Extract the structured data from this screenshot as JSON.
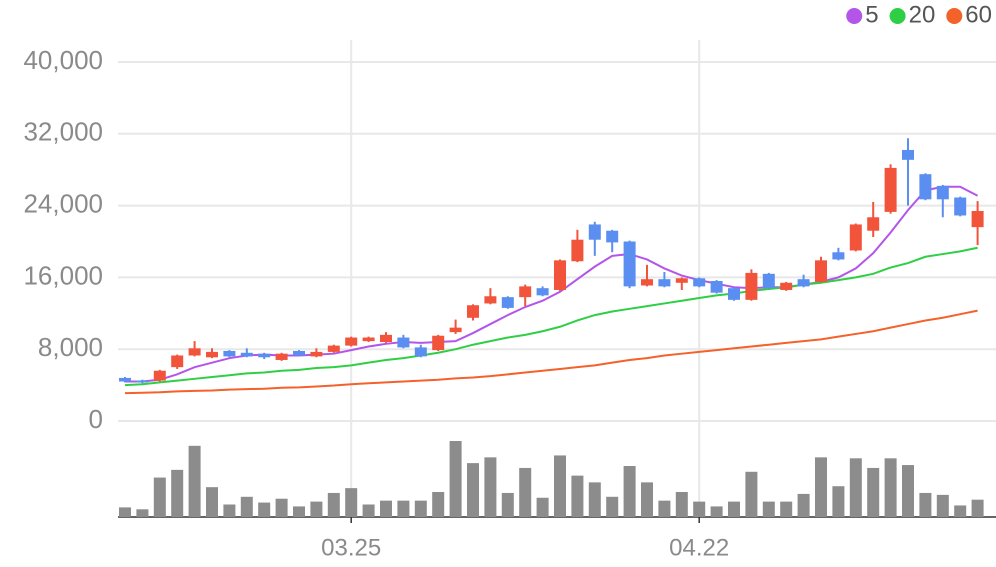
{
  "chart_data": {
    "type": "candlestick",
    "categories": [
      null,
      null,
      null,
      null,
      null,
      null,
      null,
      null,
      null,
      null,
      null,
      null,
      null,
      "03.25",
      null,
      null,
      null,
      null,
      null,
      null,
      null,
      null,
      null,
      null,
      null,
      null,
      null,
      null,
      null,
      null,
      null,
      null,
      null,
      "04.22",
      null,
      null,
      null,
      null,
      null,
      null,
      null,
      null,
      null,
      null,
      null,
      null,
      null,
      null,
      null,
      null
    ],
    "open": [
      4800,
      4500,
      4500,
      6000,
      7300,
      7100,
      7800,
      7600,
      7500,
      6800,
      7800,
      7200,
      7700,
      8400,
      8900,
      8800,
      9300,
      8200,
      7900,
      9900,
      11500,
      13100,
      13800,
      13800,
      14800,
      14600,
      17800,
      21900,
      21200,
      20000,
      15100,
      15800,
      15400,
      15900,
      15600,
      14800,
      13500,
      16400,
      14600,
      15800,
      15500,
      18800,
      19000,
      21200,
      23300,
      30200,
      27500,
      26200,
      24900,
      21600
    ],
    "high": [
      4900,
      4600,
      5700,
      7400,
      8900,
      8100,
      7900,
      8100,
      7600,
      7600,
      7900,
      8100,
      8500,
      9400,
      9400,
      9900,
      9600,
      8500,
      9600,
      11300,
      13000,
      14800,
      13900,
      15200,
      15000,
      18000,
      21300,
      22200,
      21300,
      20100,
      17400,
      16600,
      16000,
      16000,
      15700,
      14900,
      16900,
      16500,
      15500,
      16300,
      18300,
      19300,
      22000,
      24400,
      28600,
      31500,
      27600,
      26300,
      25000,
      24500
    ],
    "low": [
      4300,
      4200,
      4400,
      5800,
      7200,
      7000,
      7100,
      7100,
      6900,
      6700,
      7200,
      7100,
      7600,
      8300,
      8800,
      8700,
      8100,
      7100,
      7800,
      9700,
      11200,
      13000,
      12500,
      12800,
      13900,
      14500,
      17700,
      18400,
      18800,
      14800,
      15000,
      14900,
      14600,
      14900,
      14200,
      13400,
      13400,
      14700,
      14500,
      14900,
      15400,
      17900,
      18900,
      20500,
      23100,
      24000,
      24600,
      22700,
      22800,
      19600
    ],
    "close": [
      4400,
      4300,
      5600,
      7300,
      8100,
      7700,
      7200,
      7200,
      7100,
      7500,
      7300,
      7700,
      8400,
      9300,
      9300,
      9600,
      8200,
      7200,
      9500,
      10400,
      12900,
      13900,
      12600,
      15000,
      14000,
      17900,
      20200,
      20200,
      19900,
      15000,
      15800,
      15000,
      15900,
      15000,
      14300,
      13500,
      16500,
      14800,
      15400,
      15000,
      17900,
      18000,
      21900,
      22700,
      28200,
      29100,
      24700,
      24700,
      22900,
      23400
    ],
    "up_color": "#f1533b",
    "down_color": "#5a8ef0",
    "volume": [
      10,
      8,
      41,
      49,
      74,
      31,
      13,
      21,
      15,
      19,
      11,
      16,
      25,
      30,
      13,
      17,
      17,
      17,
      26,
      79,
      56,
      62,
      25,
      51,
      20,
      64,
      43,
      36,
      21,
      53,
      36,
      17,
      26,
      16,
      11,
      16,
      47,
      16,
      16,
      24,
      62,
      32,
      61,
      51,
      61,
      54,
      25,
      23,
      12,
      18
    ],
    "volume_color": "#8c8c8c",
    "series": [
      {
        "name": "5",
        "color": "#b455ea",
        "values": [
          4400,
          4400,
          4600,
          5200,
          6000,
          6500,
          7000,
          7300,
          7400,
          7300,
          7300,
          7400,
          7500,
          7900,
          8300,
          8600,
          8800,
          8700,
          8800,
          8900,
          9800,
          10800,
          11800,
          12700,
          13400,
          14400,
          15800,
          17200,
          18400,
          18600,
          18000,
          17000,
          16200,
          15700,
          15300,
          14900,
          14800,
          14900,
          14900,
          15200,
          15500,
          16000,
          17000,
          18700,
          21000,
          23500,
          25700,
          26100,
          26100,
          25100
        ]
      },
      {
        "name": "20",
        "color": "#2fcf45",
        "values": [
          4000,
          4100,
          4300,
          4500,
          4700,
          4900,
          5100,
          5300,
          5400,
          5600,
          5700,
          5900,
          6000,
          6200,
          6500,
          6800,
          7000,
          7300,
          7600,
          8000,
          8500,
          8900,
          9300,
          9600,
          10000,
          10500,
          11200,
          11800,
          12200,
          12500,
          12800,
          13100,
          13400,
          13700,
          14000,
          14200,
          14500,
          14700,
          14900,
          15200,
          15400,
          15700,
          16000,
          16400,
          17100,
          17600,
          18300,
          18600,
          18900,
          19300
        ]
      },
      {
        "name": "60",
        "color": "#f4612b",
        "values": [
          3100,
          3150,
          3200,
          3300,
          3350,
          3400,
          3500,
          3550,
          3600,
          3700,
          3750,
          3850,
          3950,
          4100,
          4200,
          4300,
          4400,
          4500,
          4600,
          4750,
          4850,
          5000,
          5200,
          5400,
          5600,
          5800,
          6000,
          6200,
          6500,
          6800,
          7000,
          7300,
          7500,
          7700,
          7900,
          8100,
          8300,
          8500,
          8700,
          8900,
          9100,
          9400,
          9700,
          10000,
          10400,
          10800,
          11200,
          11500,
          11900,
          12300
        ]
      }
    ],
    "ylim": [
      0,
      40000
    ],
    "yticks": [
      0,
      {
        "value": 8000,
        "label": "8,000"
      },
      {
        "value": 16000,
        "label": "16,000"
      },
      {
        "value": 24000,
        "label": "24,000"
      },
      {
        "value": 32000,
        "label": "32,000"
      },
      {
        "value": 40000,
        "label": "40,000"
      }
    ],
    "grid": true,
    "legend": "top-right"
  }
}
